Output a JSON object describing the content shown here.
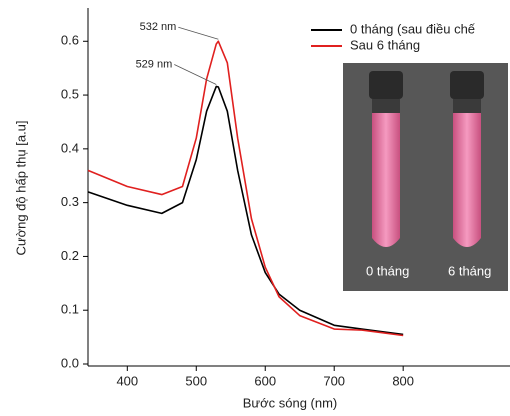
{
  "chart_data": {
    "type": "line",
    "x_label": "Bước sóng (nm)",
    "y_label": "Cường độ hấp thụ [a.u]",
    "x": [
      343,
      400,
      450,
      480,
      500,
      515,
      529,
      532,
      545,
      560,
      580,
      600,
      620,
      650,
      700,
      740,
      800
    ],
    "series": [
      {
        "name": "0 tháng (sau điều chế",
        "color": "#000000",
        "values": [
          0.32,
          0.295,
          0.28,
          0.3,
          0.38,
          0.47,
          0.516,
          0.515,
          0.47,
          0.36,
          0.24,
          0.17,
          0.13,
          0.1,
          0.072,
          0.065,
          0.055
        ]
      },
      {
        "name": "Sau 6 tháng",
        "color": "#e0201f",
        "values": [
          0.36,
          0.33,
          0.315,
          0.33,
          0.42,
          0.53,
          0.595,
          0.6,
          0.56,
          0.42,
          0.27,
          0.18,
          0.125,
          0.09,
          0.065,
          0.063,
          0.053
        ]
      }
    ],
    "annotations": [
      {
        "text": "532 nm",
        "x": 532,
        "y": 0.6
      },
      {
        "text": "529 nm",
        "x": 529,
        "y": 0.516
      }
    ],
    "inset_labels": [
      "0 tháng",
      "6 tháng"
    ],
    "xlim": [
      343,
      952
    ],
    "ylim": [
      0,
      0.66
    ],
    "xticks": [
      400,
      500,
      600,
      700,
      800
    ],
    "yticks": [
      {
        "value": 0,
        "label": "0.0"
      },
      0.1,
      0.2,
      0.3,
      0.4,
      0.5,
      0.6
    ]
  }
}
